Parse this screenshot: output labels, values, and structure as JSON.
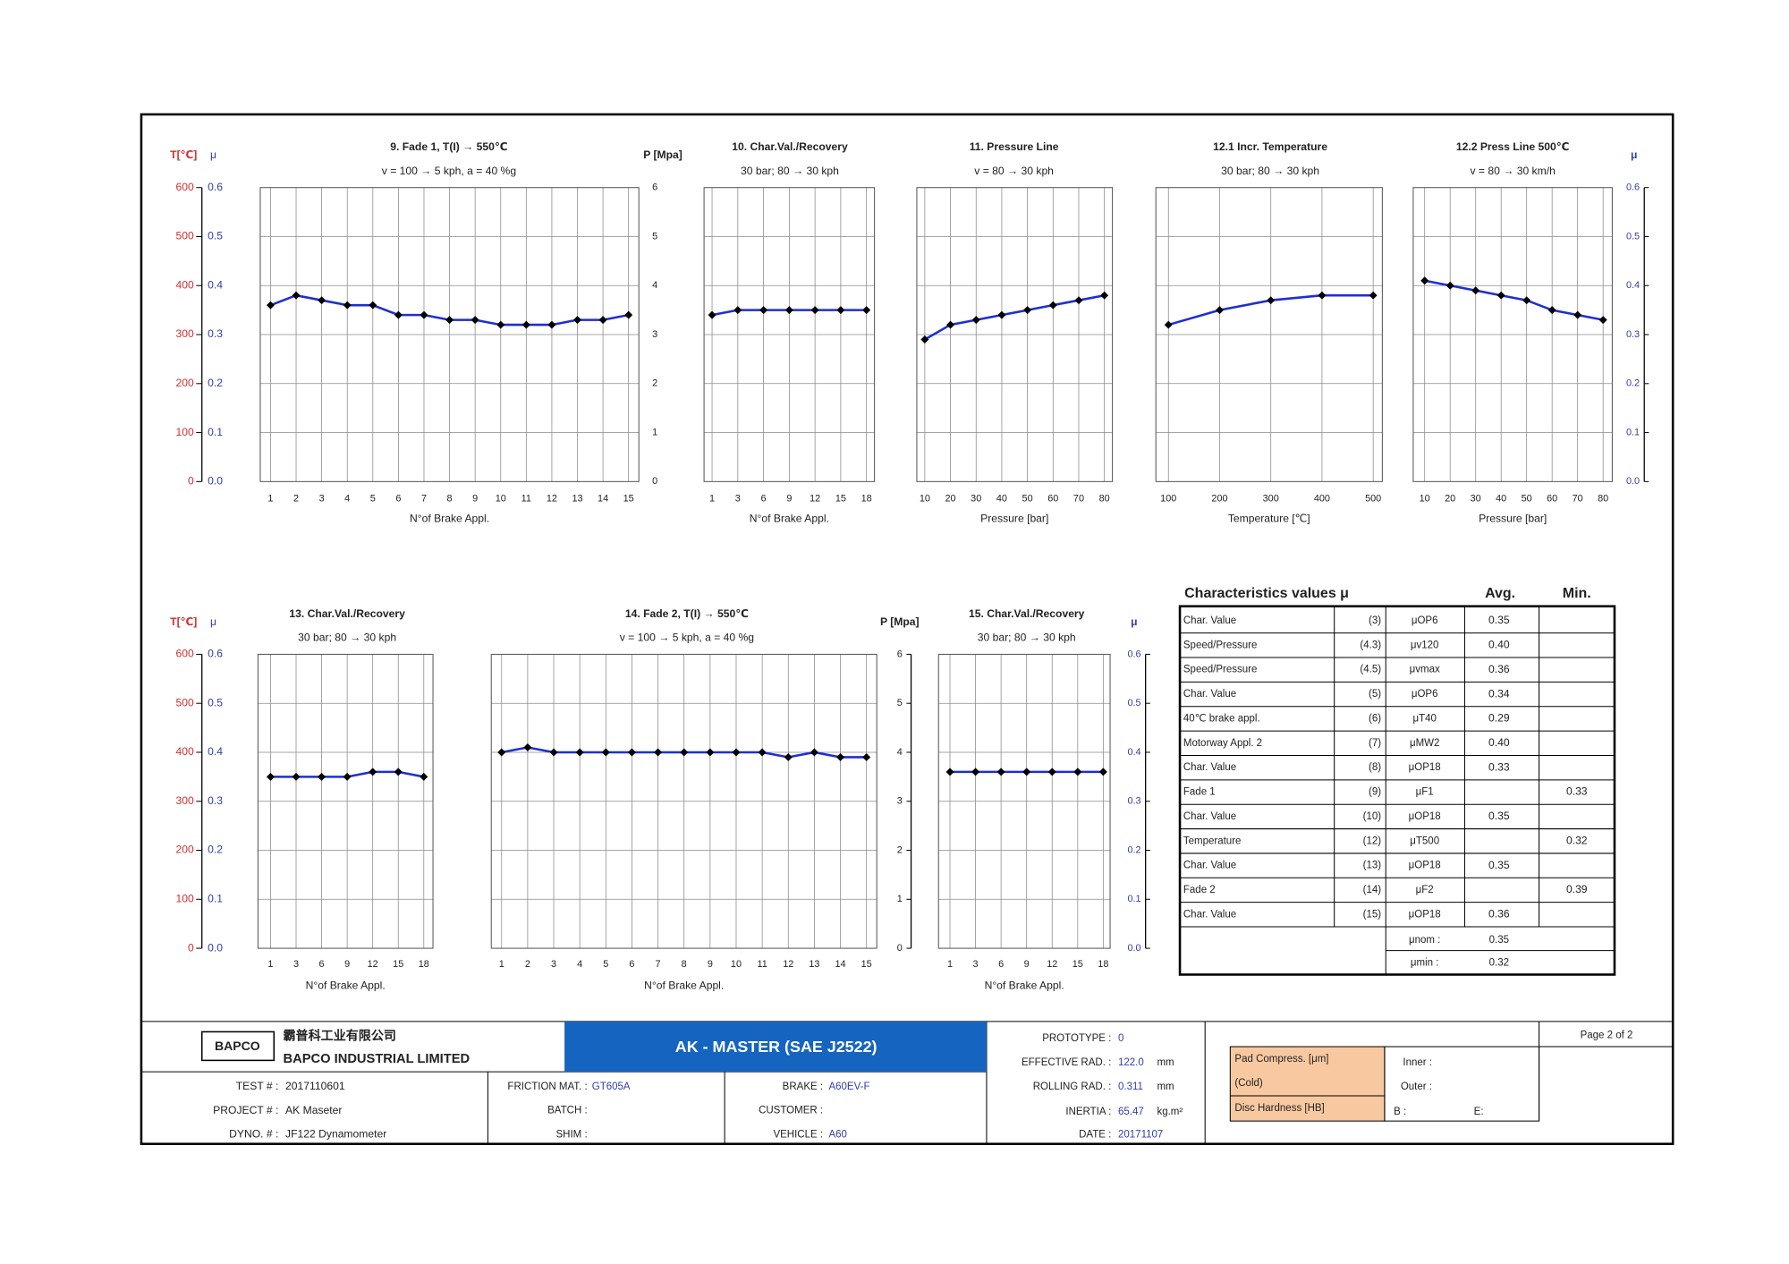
{
  "top_row": {
    "left_axis": {
      "t_label": "T[℃]",
      "mu_label": "μ",
      "t_ticks": [
        "600",
        "500",
        "400",
        "300",
        "200",
        "100",
        "0"
      ],
      "mu_ticks": [
        "0.6",
        "0.5",
        "0.4",
        "0.3",
        "0.2",
        "0.1",
        "0.0"
      ]
    },
    "pressure_axis": {
      "label": "P [Mpa]",
      "ticks": [
        "6",
        "5",
        "4",
        "3",
        "2",
        "1",
        "0"
      ]
    },
    "right_axis": {
      "label": "μ",
      "ticks": [
        "0.6",
        "0.5",
        "0.4",
        "0.3",
        "0.2",
        "0.1",
        "0.0"
      ]
    },
    "panels": [
      {
        "title": "9. Fade 1, T(I) → 550℃",
        "subtitle": "v = 100 → 5 kph, a = 40 %g",
        "x_label": "N°of Brake Appl.",
        "x_ticks": [
          "1",
          "2",
          "3",
          "4",
          "5",
          "6",
          "7",
          "8",
          "9",
          "10",
          "11",
          "12",
          "13",
          "14",
          "15"
        ],
        "mu_points": [
          0.36,
          0.38,
          0.37,
          0.36,
          0.36,
          0.34,
          0.34,
          0.33,
          0.33,
          0.32,
          0.32,
          0.32,
          0.33,
          0.33,
          0.34
        ]
      },
      {
        "title": "10. Char.Val./Recovery",
        "subtitle": "30 bar; 80 → 30 kph",
        "x_label": "N°of Brake Appl.",
        "x_ticks": [
          "1",
          "3",
          "6",
          "9",
          "12",
          "15",
          "18"
        ],
        "mu_points": [
          0.34,
          0.35,
          0.35,
          0.35,
          0.35,
          0.35,
          0.35
        ]
      },
      {
        "title": "11. Pressure Line",
        "subtitle": "v = 80 → 30 kph",
        "x_label": "Pressure [bar]",
        "x_ticks": [
          "10",
          "20",
          "30",
          "40",
          "50",
          "60",
          "70",
          "80"
        ],
        "mu_points": [
          0.29,
          0.32,
          0.33,
          0.34,
          0.35,
          0.36,
          0.37,
          0.38
        ]
      },
      {
        "title": "12.1 Incr. Temperature",
        "subtitle": "30 bar; 80 → 30 kph",
        "x_label": "Temperature [℃]",
        "x_ticks": [
          "100",
          "200",
          "300",
          "400",
          "500"
        ],
        "mu_points": [
          0.32,
          0.35,
          0.37,
          0.38,
          0.38
        ]
      },
      {
        "title": "12.2  Press Line 500℃",
        "subtitle": "v = 80 → 30 km/h",
        "x_label": "Pressure [bar]",
        "x_ticks": [
          "10",
          "20",
          "30",
          "40",
          "50",
          "60",
          "70",
          "80"
        ],
        "mu_points": [
          0.41,
          0.4,
          0.39,
          0.38,
          0.37,
          0.35,
          0.34,
          0.33
        ]
      }
    ]
  },
  "bottom_row": {
    "left_axis": {
      "t_label": "T[℃]",
      "mu_label": "μ",
      "t_ticks": [
        "600",
        "500",
        "400",
        "300",
        "200",
        "100",
        "0"
      ],
      "mu_ticks": [
        "0.6",
        "0.5",
        "0.4",
        "0.3",
        "0.2",
        "0.1",
        "0.0"
      ]
    },
    "pressure_axis": {
      "label": "P [Mpa]",
      "ticks": [
        "6",
        "5",
        "4",
        "3",
        "2",
        "1",
        "0"
      ]
    },
    "right_axis": {
      "label": "μ",
      "ticks": [
        "0.6",
        "0.5",
        "0.4",
        "0.3",
        "0.2",
        "0.1",
        "0.0"
      ]
    },
    "panels": [
      {
        "title": "13. Char.Val./Recovery",
        "subtitle": "30 bar; 80 → 30 kph",
        "x_label": "N°of Brake Appl.",
        "x_ticks": [
          "1",
          "3",
          "6",
          "9",
          "12",
          "15",
          "18"
        ],
        "mu_points": [
          0.35,
          0.35,
          0.35,
          0.35,
          0.36,
          0.36,
          0.35
        ]
      },
      {
        "title": "14. Fade 2, T(I) → 550℃",
        "subtitle": "v = 100 → 5 kph, a = 40 %g",
        "x_label": "N°of Brake Appl.",
        "x_ticks": [
          "1",
          "2",
          "3",
          "4",
          "5",
          "6",
          "7",
          "8",
          "9",
          "10",
          "11",
          "12",
          "13",
          "14",
          "15"
        ],
        "mu_points": [
          0.4,
          0.41,
          0.4,
          0.4,
          0.4,
          0.4,
          0.4,
          0.4,
          0.4,
          0.4,
          0.4,
          0.39,
          0.4,
          0.39,
          0.39
        ]
      },
      {
        "title": "15. Char.Val./Recovery",
        "subtitle": "30 bar; 80 → 30 kph",
        "x_label": "N°of Brake Appl.",
        "x_ticks": [
          "1",
          "3",
          "6",
          "9",
          "12",
          "15",
          "18"
        ],
        "mu_points": [
          0.36,
          0.36,
          0.36,
          0.36,
          0.36,
          0.36,
          0.36
        ]
      }
    ]
  },
  "characteristics": {
    "title": "Characteristics values μ",
    "avg_header": "Avg.",
    "min_header": "Min.",
    "rows": [
      {
        "name": "Char. Value",
        "ref": "(3)",
        "symbol": "μOP6",
        "avg": "0.35"
      },
      {
        "name": "Speed/Pressure",
        "ref": "(4.3)",
        "symbol": "μv120",
        "avg": "0.40"
      },
      {
        "name": "Speed/Pressure",
        "ref": "(4.5)",
        "symbol": "μvmax",
        "avg": "0.36"
      },
      {
        "name": "Char. Value",
        "ref": "(5)",
        "symbol": "μOP6",
        "avg": "0.34"
      },
      {
        "name": "40℃ brake appl.",
        "ref": "(6)",
        "symbol": "μT40",
        "avg": "0.29"
      },
      {
        "name": "Motorway Appl. 2",
        "ref": "(7)",
        "symbol": "μMW2",
        "avg": "0.40"
      },
      {
        "name": "Char. Value",
        "ref": "(8)",
        "symbol": "μOP18",
        "avg": "0.33"
      },
      {
        "name": "Fade 1",
        "ref": "(9)",
        "symbol": "μF1",
        "min": "0.33"
      },
      {
        "name": "Char. Value",
        "ref": "(10)",
        "symbol": "μOP18",
        "avg": "0.35"
      },
      {
        "name": "Temperature",
        "ref": "(12)",
        "symbol": "μT500",
        "min": "0.32"
      },
      {
        "name": "Char. Value",
        "ref": "(13)",
        "symbol": "μOP18",
        "avg": "0.35"
      },
      {
        "name": "Fade 2",
        "ref": "(14)",
        "symbol": "μF2",
        "min": "0.39"
      },
      {
        "name": "Char. Value",
        "ref": "(15)",
        "symbol": "μOP18",
        "avg": "0.36"
      }
    ],
    "mu_nom_label": "μnom :",
    "mu_nom": "0.35",
    "mu_min_label": "μmin :",
    "mu_min": "0.32"
  },
  "footer": {
    "logo": "BAPCO",
    "company_cn": "霸普科工业有限公司",
    "company_en": "BAPCO INDUSTRIAL LIMITED",
    "banner": "AK - MASTER  (SAE J2522)",
    "test_label": "TEST # :",
    "test": "2017110601",
    "project_label": "PROJECT # :",
    "project": "AK Maseter",
    "dyno_label": "DYNO.  # :",
    "dyno": "JF122 Dynamometer",
    "friction_label": "FRICTION MAT. :",
    "friction": "GT605A",
    "batch_label": "BATCH :",
    "shim_label": "SHIM :",
    "brake_label": "BRAKE :",
    "brake": "A60EV-F",
    "customer_label": "CUSTOMER :",
    "vehicle_label": "VEHICLE :",
    "vehicle": "A60",
    "prototype_label": "PROTOTYPE :",
    "prototype": "0",
    "eff_rad_label": "EFFECTIVE RAD. :",
    "eff_rad": "122.0",
    "eff_rad_unit": "mm",
    "roll_rad_label": "ROLLING RAD. :",
    "roll_rad": "0.311",
    "roll_rad_unit": "mm",
    "inertia_label": "INERTIA :",
    "inertia": "65.47",
    "inertia_unit": "kg.m²",
    "date_label": "DATE :",
    "date": "20171107",
    "pad_label": "Pad Compress. [μm]",
    "cold_label": "(Cold)",
    "disc_label": "Disc Hardness [HB]",
    "inner_label": "Inner :",
    "outer_label": "Outer :",
    "b_label": "B :",
    "e_label": "E:",
    "page": "Page 2 of 2"
  }
}
